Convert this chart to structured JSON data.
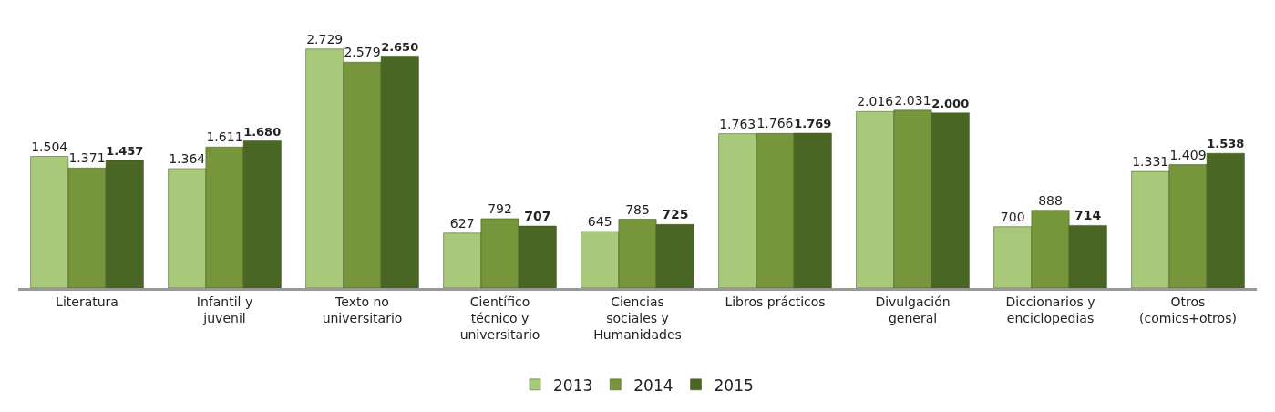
{
  "chart_data": {
    "type": "bar",
    "categories": [
      "Literatura",
      "Infantil y juvenil",
      "Texto no universitario",
      "Científico técnico y universitario",
      "Ciencias sociales y Humanidades",
      "Libros prácticos",
      "Divulgación general",
      "Diccionarios y enciclopedias",
      "Otros (comics+otros)"
    ],
    "series": [
      {
        "name": "2013",
        "color": "#a9c97a",
        "values": [
          1504,
          1364,
          2729,
          627,
          645,
          1763,
          2016,
          700,
          1331
        ],
        "value_labels": [
          "1.504",
          "1.364",
          "2.729",
          "627",
          "645",
          "1.763",
          "2.016",
          "700",
          "1.331"
        ]
      },
      {
        "name": "2014",
        "color": "#77953a",
        "values": [
          1371,
          1611,
          2579,
          792,
          785,
          1766,
          2031,
          888,
          1409
        ],
        "value_labels": [
          "1.371",
          "1.611",
          "2.579",
          "792",
          "785",
          "1.766",
          "2.031",
          "888",
          "1.409"
        ]
      },
      {
        "name": "2015",
        "color": "#4a6625",
        "values": [
          1457,
          1680,
          2650,
          707,
          725,
          1769,
          2000,
          714,
          1538
        ],
        "value_labels": [
          "1.457",
          "1.680",
          "2.650",
          "707",
          "725",
          "1.769",
          "2.000",
          "714",
          "1.538"
        ]
      }
    ],
    "legend": "bottom",
    "grid": false
  }
}
